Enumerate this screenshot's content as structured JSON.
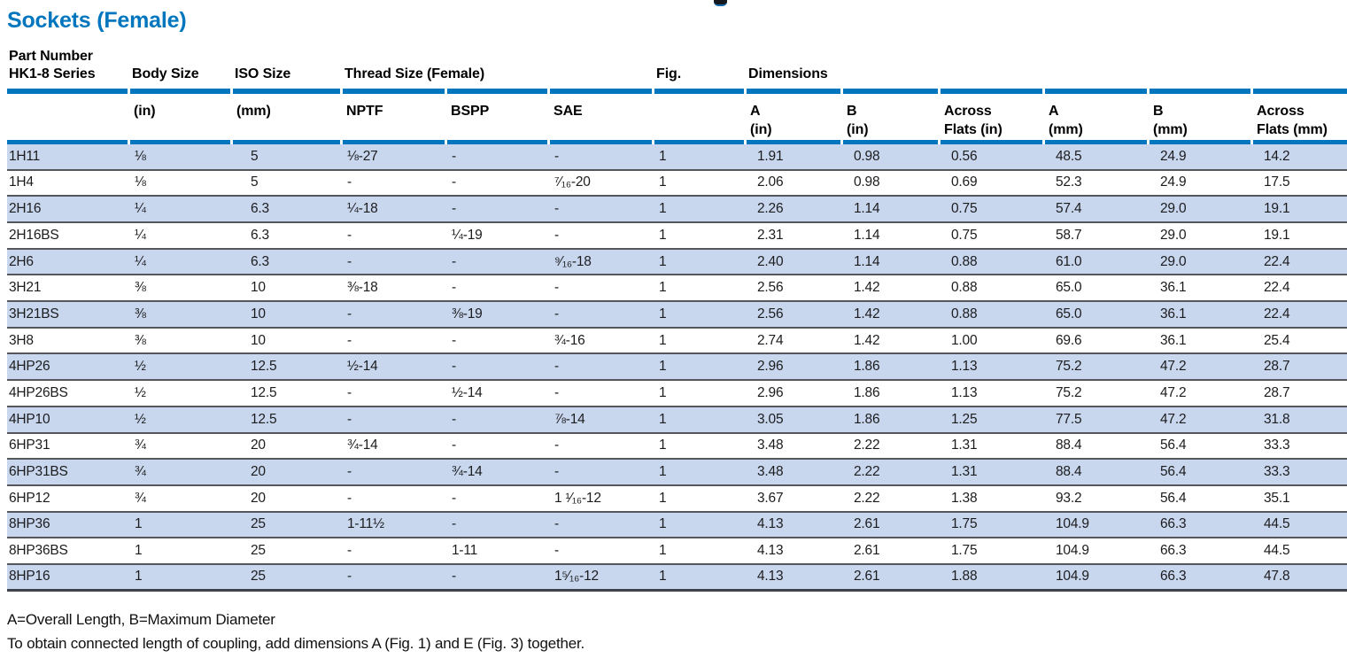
{
  "page": {
    "title": "Sockets (Female)",
    "note_line1": "A=Overall Length, B=Maximum Diameter",
    "note_line2": "To obtain connected length of coupling, add dimensions A (Fig. 1) and E (Fig. 3) together."
  },
  "colors": {
    "brand_blue": "#0076BE",
    "row_blue": "#C8D7EE",
    "row_border_gray": "#54565B",
    "table_end_border": "#3E434A"
  },
  "table": {
    "group_headers": {
      "part_number": "Part Number\nHK1-8 Series",
      "body_size": "Body Size",
      "iso_size": "ISO Size",
      "thread_size": "Thread Size (Female)",
      "fig": "Fig.",
      "dimensions": "Dimensions"
    },
    "sub_headers": [
      "",
      "(in)",
      "(mm)",
      "NPTF",
      "BSPP",
      "SAE",
      "",
      "A\n(in)",
      "B\n(in)",
      "Across\nFlats (in)",
      "A\n(mm)",
      "B\n(mm)",
      "Across\nFlats (mm)"
    ],
    "rows": [
      [
        "1H11",
        "⅛",
        "5",
        "⅛-27",
        "-",
        "-",
        "1",
        "1.91",
        "0.98",
        "0.56",
        "48.5",
        "24.9",
        "14.2"
      ],
      [
        "1H4",
        "⅛",
        "5",
        "-",
        "-",
        "⁷⁄₁₆-20",
        "1",
        "2.06",
        "0.98",
        "0.69",
        "52.3",
        "24.9",
        "17.5"
      ],
      [
        "2H16",
        "¼",
        "6.3",
        "¼-18",
        "-",
        "-",
        "1",
        "2.26",
        "1.14",
        "0.75",
        "57.4",
        "29.0",
        "19.1"
      ],
      [
        "2H16BS",
        "¼",
        "6.3",
        "-",
        "¼-19",
        "-",
        "1",
        "2.31",
        "1.14",
        "0.75",
        "58.7",
        "29.0",
        "19.1"
      ],
      [
        "2H6",
        "¼",
        "6.3",
        "-",
        "-",
        "⁹⁄₁₆-18",
        "1",
        "2.40",
        "1.14",
        "0.88",
        "61.0",
        "29.0",
        "22.4"
      ],
      [
        "3H21",
        "⅜",
        "10",
        "⅜-18",
        "-",
        "-",
        "1",
        "2.56",
        "1.42",
        "0.88",
        "65.0",
        "36.1",
        "22.4"
      ],
      [
        "3H21BS",
        "⅜",
        "10",
        "-",
        "⅜-19",
        "-",
        "1",
        "2.56",
        "1.42",
        "0.88",
        "65.0",
        "36.1",
        "22.4"
      ],
      [
        "3H8",
        "⅜",
        "10",
        "-",
        "-",
        "¾-16",
        "1",
        "2.74",
        "1.42",
        "1.00",
        "69.6",
        "36.1",
        "25.4"
      ],
      [
        "4HP26",
        "½",
        "12.5",
        "½-14",
        "-",
        "-",
        "1",
        "2.96",
        "1.86",
        "1.13",
        "75.2",
        "47.2",
        "28.7"
      ],
      [
        "4HP26BS",
        "½",
        "12.5",
        "-",
        "½-14",
        "-",
        "1",
        "2.96",
        "1.86",
        "1.13",
        "75.2",
        "47.2",
        "28.7"
      ],
      [
        "4HP10",
        "½",
        "12.5",
        "-",
        "-",
        "⅞-14",
        "1",
        "3.05",
        "1.86",
        "1.25",
        "77.5",
        "47.2",
        "31.8"
      ],
      [
        "6HP31",
        "¾",
        "20",
        "¾-14",
        "-",
        "-",
        "1",
        "3.48",
        "2.22",
        "1.31",
        "88.4",
        "56.4",
        "33.3"
      ],
      [
        "6HP31BS",
        "¾",
        "20",
        "-",
        "¾-14",
        "-",
        "1",
        "3.48",
        "2.22",
        "1.31",
        "88.4",
        "56.4",
        "33.3"
      ],
      [
        "6HP12",
        "¾",
        "20",
        "-",
        "-",
        "1 ¹⁄₁₆-12",
        "1",
        "3.67",
        "2.22",
        "1.38",
        "93.2",
        "56.4",
        "35.1"
      ],
      [
        "8HP36",
        "1",
        "25",
        "1-11½",
        "-",
        "-",
        "1",
        "4.13",
        "2.61",
        "1.75",
        "104.9",
        "66.3",
        "44.5"
      ],
      [
        "8HP36BS",
        "1",
        "25",
        "-",
        "1-11",
        "-",
        "1",
        "4.13",
        "2.61",
        "1.75",
        "104.9",
        "66.3",
        "44.5"
      ],
      [
        "8HP16",
        "1",
        "25",
        "-",
        "-",
        "1⁵⁄₁₆-12",
        "1",
        "4.13",
        "2.61",
        "1.88",
        "104.9",
        "66.3",
        "47.8"
      ]
    ]
  }
}
